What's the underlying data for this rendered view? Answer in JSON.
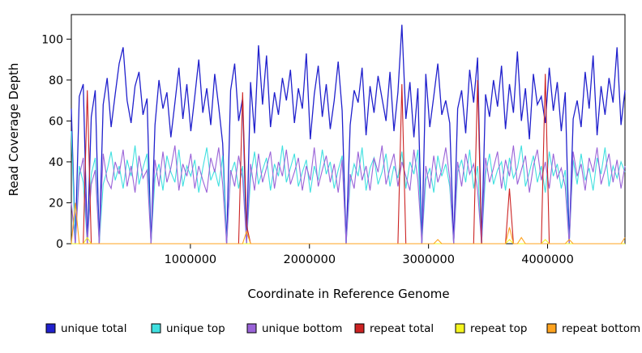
{
  "chart_data": {
    "type": "line",
    "title": "",
    "xlabel": "Coordinate in Reference Genome",
    "ylabel": "Read Coverage Depth",
    "xlim": [
      0,
      4650000
    ],
    "ylim": [
      0,
      112
    ],
    "xticks": [
      1000000,
      2000000,
      3000000,
      4000000
    ],
    "yticks": [
      0,
      20,
      40,
      60,
      80,
      100
    ],
    "grid": false,
    "legend_position": "bottom",
    "n_points": 140,
    "series": [
      {
        "name": "unique total",
        "color": "#2121cd",
        "values": [
          66,
          0,
          72,
          78,
          0,
          62,
          75,
          0,
          68,
          81,
          57,
          73,
          88,
          96,
          70,
          59,
          77,
          84,
          63,
          71,
          0,
          58,
          80,
          66,
          74,
          52,
          69,
          86,
          61,
          78,
          55,
          72,
          90,
          64,
          76,
          58,
          83,
          67,
          49,
          0,
          75,
          88,
          60,
          71,
          0,
          79,
          54,
          97,
          68,
          92,
          57,
          74,
          63,
          81,
          70,
          85,
          59,
          76,
          66,
          93,
          51,
          73,
          87,
          62,
          78,
          56,
          70,
          89,
          65,
          0,
          58,
          75,
          69,
          86,
          53,
          77,
          64,
          82,
          71,
          60,
          84,
          55,
          74,
          107,
          61,
          79,
          52,
          76,
          0,
          83,
          57,
          72,
          88,
          63,
          70,
          59,
          0,
          66,
          75,
          54,
          85,
          69,
          91,
          0,
          73,
          62,
          80,
          67,
          87,
          56,
          78,
          64,
          94,
          60,
          76,
          51,
          83,
          68,
          72,
          59,
          86,
          65,
          79,
          55,
          74,
          0,
          61,
          70,
          57,
          84,
          66,
          92,
          53,
          77,
          63,
          81,
          69,
          96,
          58,
          75
        ]
      },
      {
        "name": "unique top",
        "color": "#40e0e0",
        "values": [
          55,
          0,
          38,
          30,
          0,
          34,
          42,
          0,
          29,
          36,
          45,
          31,
          38,
          27,
          41,
          33,
          48,
          29,
          37,
          44,
          0,
          32,
          39,
          26,
          43,
          35,
          30,
          46,
          28,
          38,
          33,
          41,
          25,
          37,
          47,
          31,
          36,
          28,
          43,
          0,
          34,
          40,
          27,
          38,
          0,
          32,
          45,
          29,
          36,
          42,
          26,
          39,
          33,
          48,
          30,
          37,
          44,
          28,
          35,
          41,
          25,
          38,
          31,
          46,
          34,
          40,
          27,
          36,
          43,
          0,
          30,
          39,
          33,
          47,
          26,
          37,
          42,
          29,
          35,
          44,
          28,
          38,
          32,
          45,
          27,
          40,
          34,
          46,
          0,
          31,
          37,
          25,
          43,
          33,
          39,
          28,
          0,
          35,
          41,
          30,
          46,
          27,
          38,
          0,
          34,
          44,
          29,
          36,
          40,
          26,
          42,
          32,
          37,
          48,
          28,
          35,
          43,
          30,
          38,
          25,
          45,
          33,
          39,
          27,
          36,
          0,
          41,
          29,
          44,
          31,
          37,
          26,
          42,
          34,
          47,
          28,
          38,
          32,
          40,
          35
        ]
      },
      {
        "name": "unique bottom",
        "color": "#9a63d8",
        "values": [
          20,
          0,
          33,
          42,
          0,
          29,
          36,
          0,
          44,
          31,
          27,
          40,
          34,
          46,
          28,
          38,
          25,
          43,
          32,
          36,
          0,
          41,
          28,
          45,
          30,
          37,
          48,
          26,
          39,
          33,
          44,
          27,
          38,
          31,
          25,
          42,
          35,
          47,
          29,
          0,
          36,
          28,
          43,
          32,
          0,
          39,
          26,
          44,
          30,
          37,
          45,
          27,
          40,
          33,
          46,
          29,
          35,
          42,
          26,
          38,
          31,
          47,
          28,
          36,
          43,
          30,
          39,
          25,
          41,
          0,
          34,
          27,
          45,
          31,
          38,
          26,
          42,
          35,
          48,
          29,
          37,
          44,
          28,
          40,
          33,
          26,
          46,
          31,
          0,
          38,
          27,
          43,
          30,
          36,
          47,
          32,
          0,
          40,
          28,
          44,
          34,
          39,
          26,
          0,
          42,
          30,
          37,
          45,
          27,
          41,
          33,
          48,
          29,
          36,
          43,
          25,
          38,
          46,
          31,
          40,
          27,
          44,
          32,
          37,
          28,
          0,
          45,
          33,
          39,
          26,
          42,
          35,
          47,
          29,
          36,
          44,
          30,
          41,
          27,
          38
        ]
      },
      {
        "name": "repeat total",
        "color": "#cc2222",
        "spikes": [
          [
            4,
            75
          ],
          [
            43,
            74
          ],
          [
            44,
            9
          ],
          [
            83,
            78
          ],
          [
            102,
            80
          ],
          [
            110,
            27
          ],
          [
            119,
            83
          ]
        ]
      },
      {
        "name": "repeat top",
        "color": "#f5f51f",
        "spikes": [
          [
            4,
            3
          ],
          [
            110,
            2
          ],
          [
            119,
            2
          ]
        ]
      },
      {
        "name": "repeat bottom",
        "color": "#ffa31f",
        "spikes": [
          [
            1,
            20
          ],
          [
            44,
            6
          ],
          [
            92,
            2
          ],
          [
            110,
            8
          ],
          [
            113,
            3
          ],
          [
            125,
            2
          ],
          [
            139,
            3
          ]
        ]
      }
    ]
  }
}
